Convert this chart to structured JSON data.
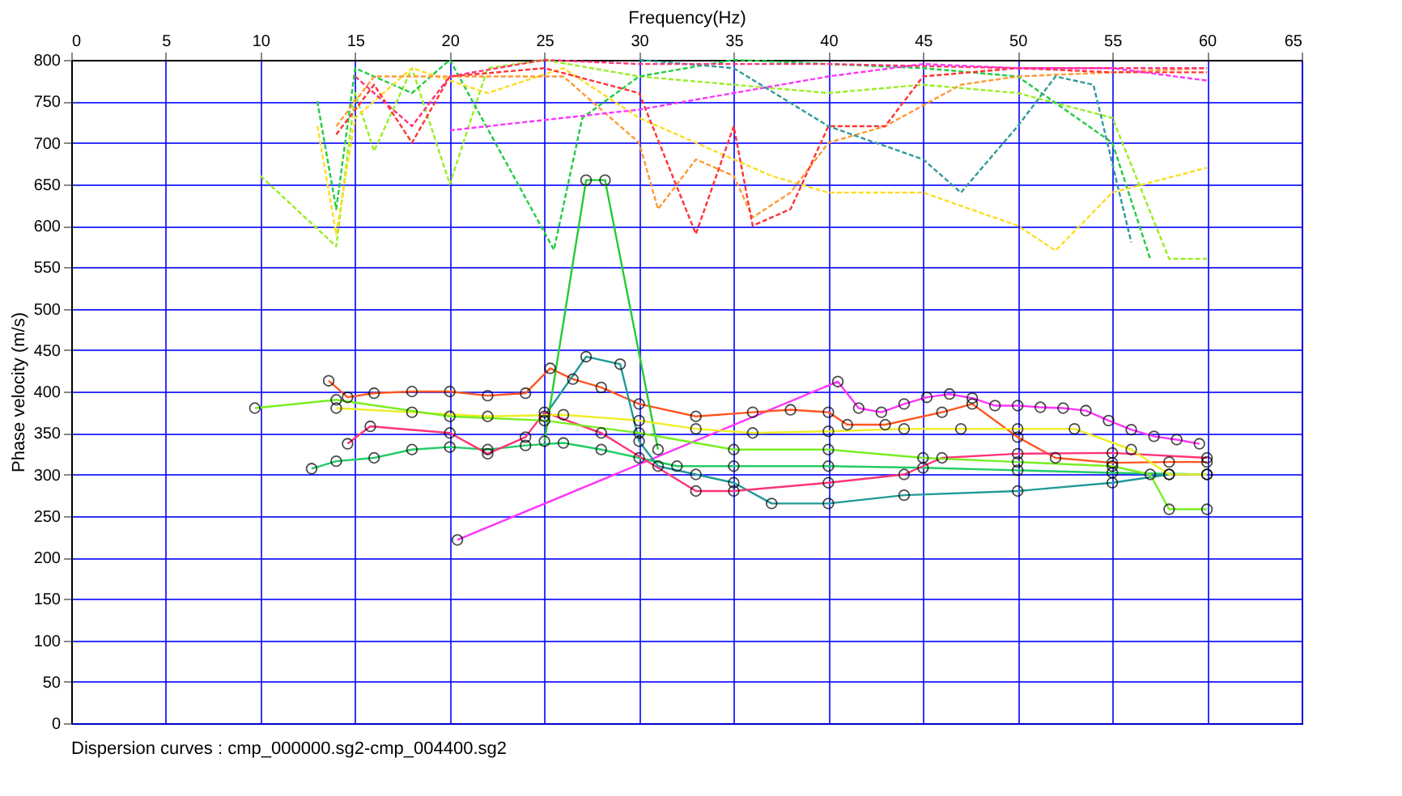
{
  "chart_data": {
    "type": "line",
    "xlabel": "Frequency(Hz)",
    "ylabel": "Phase velocity (m/s)",
    "annotations": [
      "Dispersion curves : cmp_000000.sg2-cmp_004400.sg2"
    ],
    "xlim": [
      0,
      65
    ],
    "xticks": [
      0,
      5,
      10,
      15,
      20,
      25,
      30,
      35,
      40,
      45,
      50,
      55,
      60,
      65
    ],
    "ylim": [
      0,
      800
    ],
    "yticks": [
      0,
      50,
      100,
      150,
      200,
      250,
      300,
      350,
      400,
      450,
      500,
      550,
      600,
      650,
      700,
      750,
      800
    ],
    "grid": true,
    "series": [
      {
        "color": "#99ee22",
        "line_style": "dashed",
        "marker": "none",
        "x": [
          10,
          14,
          15,
          16,
          18,
          20,
          22,
          25,
          30,
          35,
          40,
          45,
          50,
          55,
          58,
          60
        ],
        "values": [
          660,
          575,
          760,
          690,
          790,
          650,
          790,
          800,
          780,
          770,
          760,
          770,
          760,
          730,
          560,
          560
        ]
      },
      {
        "color": "#22cc44",
        "line_style": "dashed",
        "marker": "none",
        "x": [
          13,
          14,
          15,
          18,
          20,
          25.5,
          27,
          30,
          35,
          40,
          45,
          50,
          55,
          57
        ],
        "values": [
          750,
          620,
          790,
          760,
          800,
          571,
          730,
          780,
          800,
          795,
          790,
          780,
          700,
          560
        ]
      },
      {
        "color": "#ffdd22",
        "line_style": "dashed",
        "marker": "none",
        "x": [
          13,
          14,
          15,
          18,
          22,
          26,
          30,
          33,
          37,
          40,
          45,
          50,
          52,
          55,
          60
        ],
        "values": [
          720,
          590,
          730,
          790,
          760,
          790,
          730,
          700,
          660,
          640,
          640,
          600,
          570,
          640,
          670
        ]
      },
      {
        "color": "#ff9933",
        "line_style": "dashed",
        "marker": "none",
        "x": [
          14,
          16,
          20,
          26,
          30,
          31,
          33,
          35,
          36,
          38,
          40,
          43,
          47,
          50,
          55,
          60
        ],
        "values": [
          720,
          780,
          780,
          780,
          700,
          620,
          680,
          660,
          610,
          640,
          700,
          720,
          770,
          780,
          785,
          790
        ]
      },
      {
        "color": "#ff3333",
        "line_style": "dashed",
        "marker": "none",
        "x": [
          14,
          16,
          18,
          20,
          25,
          30,
          33,
          35,
          36,
          38,
          40,
          43,
          45,
          50,
          55,
          60
        ],
        "values": [
          710,
          770,
          700,
          780,
          790,
          760,
          590,
          720,
          600,
          620,
          720,
          720,
          780,
          790,
          785,
          785
        ]
      },
      {
        "color": "#ff33ff",
        "line_style": "dashed",
        "marker": "none",
        "x": [
          20,
          30,
          40,
          45,
          50,
          55,
          60
        ],
        "values": [
          715,
          740,
          780,
          795,
          790,
          790,
          775
        ]
      },
      {
        "color": "#339999",
        "line_style": "dashed",
        "marker": "none",
        "x": [
          30,
          35,
          40,
          45,
          47,
          50,
          52,
          54,
          56
        ],
        "values": [
          800,
          790,
          720,
          680,
          640,
          720,
          780,
          770,
          580
        ]
      },
      {
        "color": "#ff3377",
        "line_style": "dashed",
        "marker": "none",
        "x": [
          15,
          18,
          20,
          25,
          30,
          40,
          50,
          60
        ],
        "values": [
          780,
          720,
          780,
          800,
          795,
          795,
          790,
          790
        ]
      },
      {
        "color": "#ff33ff",
        "line_style": "solid",
        "marker": "circle",
        "x": [
          20.4,
          40.5,
          41.6,
          42.8,
          44,
          45.2,
          46.4,
          47.6,
          48.8,
          50,
          51.2,
          52.4,
          53.6,
          54.8,
          56,
          57.2,
          58.4,
          59.6
        ],
        "values": [
          221,
          412,
          380,
          375,
          385,
          393,
          397,
          392,
          383,
          383,
          381,
          380,
          377,
          365,
          354,
          346,
          342,
          337
        ]
      },
      {
        "color": "#ff5522",
        "line_style": "solid",
        "marker": "circle",
        "x": [
          13.6,
          14.6,
          16,
          18,
          20,
          22,
          24,
          25.3,
          26.5,
          28,
          30,
          33,
          36,
          38,
          40,
          41,
          43,
          46,
          47.6,
          50,
          52,
          55,
          58,
          60
        ],
        "values": [
          413,
          393,
          398,
          400,
          400,
          395,
          398,
          428,
          415,
          405,
          385,
          370,
          375,
          378,
          375,
          360,
          360,
          375,
          385,
          345,
          320,
          314,
          315,
          315
        ]
      },
      {
        "color": "#22cc66",
        "line_style": "solid",
        "marker": "circle",
        "x": [
          12.7,
          14,
          16,
          18,
          20,
          22,
          24,
          26,
          28,
          30,
          32,
          35,
          40,
          45,
          50,
          55,
          60
        ],
        "values": [
          307,
          316,
          320,
          330,
          333,
          330,
          335,
          338,
          330,
          320,
          310,
          310,
          310,
          308,
          305,
          302,
          300
        ]
      },
      {
        "color": "#229999",
        "line_style": "solid",
        "marker": "circle",
        "x": [
          25,
          27.2,
          29,
          30,
          31,
          33,
          35,
          37,
          40,
          44,
          50,
          55,
          58
        ],
        "values": [
          370,
          442,
          433,
          340,
          310,
          300,
          290,
          265,
          265,
          275,
          280,
          290,
          300
        ]
      },
      {
        "color": "#22cc33",
        "line_style": "solid",
        "marker": "circle",
        "x": [
          25,
          27.2,
          28.2,
          31
        ],
        "values": [
          340,
          655,
          655,
          330
        ]
      },
      {
        "color": "#ff3377",
        "line_style": "solid",
        "marker": "circle",
        "x": [
          14.6,
          15.8,
          20,
          22,
          24,
          25,
          28,
          33,
          35,
          40,
          44,
          46,
          50,
          55,
          60
        ],
        "values": [
          337,
          358,
          350,
          325,
          345,
          375,
          350,
          280,
          280,
          290,
          300,
          320,
          325,
          326,
          320
        ]
      },
      {
        "color": "#eeee22",
        "line_style": "solid",
        "marker": "circle",
        "x": [
          14,
          18,
          22,
          26,
          30,
          33,
          36,
          40,
          44,
          47,
          50,
          53,
          56,
          58,
          60
        ],
        "values": [
          380,
          375,
          370,
          372,
          365,
          355,
          350,
          352,
          355,
          355,
          355,
          355,
          330,
          300,
          300
        ]
      },
      {
        "color": "#77ee22",
        "line_style": "solid",
        "marker": "circle",
        "x": [
          9.7,
          14,
          20,
          25,
          30,
          35,
          40,
          45,
          50,
          55,
          57,
          58,
          60
        ],
        "values": [
          380,
          390,
          370,
          365,
          350,
          330,
          330,
          320,
          315,
          310,
          300,
          258,
          258
        ]
      }
    ]
  }
}
